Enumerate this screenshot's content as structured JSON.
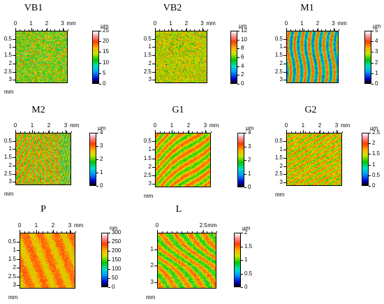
{
  "panels": [
    {
      "id": "vb1",
      "title": "VB1",
      "unit": "μm",
      "scale_ticks": [
        "25",
        "20",
        "15",
        "10",
        "5",
        "0"
      ],
      "x_ticks": [
        "0",
        "1",
        "2",
        "3"
      ],
      "x_unit": "mm",
      "y_ticks": [
        "0.5",
        "1",
        "1.5",
        "2",
        "2.5",
        "3"
      ],
      "y_unit": "mm",
      "texture": "speckle",
      "base_level": 0.55
    },
    {
      "id": "vb2",
      "title": "VB2",
      "unit": "μm",
      "scale_ticks": [
        "12",
        "10",
        "8",
        "6",
        "4",
        "2",
        "0"
      ],
      "x_ticks": [
        "0",
        "1",
        "2",
        "3"
      ],
      "x_unit": "mm",
      "y_ticks": [
        "0.5",
        "1",
        "1.5",
        "2",
        "2.5",
        "3"
      ],
      "y_unit": "",
      "texture": "speckle-dots",
      "base_level": 0.6
    },
    {
      "id": "m1",
      "title": "M1",
      "unit": "μm",
      "scale_ticks": [
        "5",
        "4",
        "3",
        "2",
        "1",
        "0"
      ],
      "x_ticks": [
        "0",
        "1",
        "2",
        "3"
      ],
      "x_unit": "mm",
      "y_ticks": [
        "0.5",
        "1",
        "1.5",
        "2",
        "2.5",
        "3"
      ],
      "y_unit": "",
      "texture": "vertical-waves",
      "base_level": 0.5
    },
    {
      "id": "m2",
      "title": "M2",
      "unit": "μm",
      "scale_ticks": [
        "4",
        "3",
        "2",
        "1",
        "0"
      ],
      "x_ticks": [
        "0",
        "1",
        "2",
        "3"
      ],
      "x_unit": "mm",
      "y_ticks": [
        "0.5",
        "1",
        "1.5",
        "2",
        "2.5",
        "3"
      ],
      "y_unit": "mm",
      "texture": "curved-lines",
      "base_level": 0.62
    },
    {
      "id": "g1",
      "title": "G1",
      "unit": "μm",
      "scale_ticks": [
        "4",
        "3",
        "2",
        "1",
        "0"
      ],
      "x_ticks": [
        "0",
        "1",
        "2",
        "3"
      ],
      "x_unit": "mm",
      "y_ticks": [
        "0.5",
        "1",
        "1.5",
        "2",
        "2.5",
        "3"
      ],
      "y_unit": "mm",
      "texture": "diagonal",
      "base_level": 0.62
    },
    {
      "id": "g2",
      "title": "G2",
      "unit": "μm",
      "scale_ticks": [
        "2.5",
        "2",
        "1.5",
        "1",
        "0.5",
        "0"
      ],
      "x_ticks": [
        "0",
        "1",
        "2",
        "3"
      ],
      "x_unit": "mm",
      "y_ticks": [
        "0.5",
        "1",
        "1.5",
        "2",
        "2.5",
        "3"
      ],
      "y_unit": "mm",
      "texture": "diagonal-fine",
      "base_level": 0.62
    },
    {
      "id": "p",
      "title": "P",
      "unit": "nm",
      "scale_ticks": [
        "300",
        "250",
        "200",
        "150",
        "100",
        "50",
        "0"
      ],
      "x_ticks": [
        "0",
        "1",
        "2",
        "3"
      ],
      "x_unit": "mm",
      "y_ticks": [
        "0.5",
        "1",
        "1.5",
        "2",
        "2.5",
        "3"
      ],
      "y_unit": "mm",
      "texture": "rough",
      "base_level": 0.7
    },
    {
      "id": "l",
      "title": "L",
      "unit": "μm",
      "scale_ticks": [
        "2",
        "1.5",
        "1",
        "0.5",
        "0"
      ],
      "x_ticks": [
        "0",
        "2.5"
      ],
      "x_unit": "mm",
      "y_ticks": [
        "1",
        "2",
        "3"
      ],
      "y_unit": "mm",
      "texture": "diagonal-streaks",
      "base_level": 0.6
    }
  ]
}
